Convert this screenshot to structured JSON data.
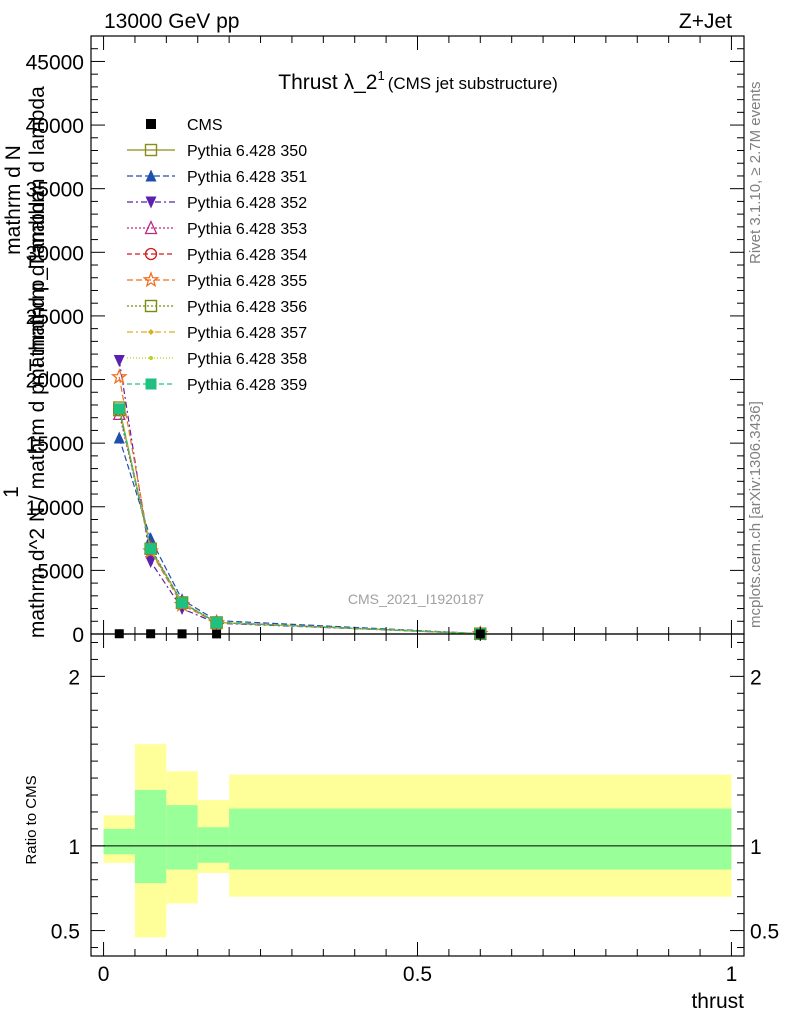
{
  "header": {
    "left": "13000 GeV pp",
    "right": "Z+Jet"
  },
  "chart_data": {
    "type": "line",
    "title": "Thrust λ_2",
    "title_superscript": "1",
    "title_suffix": "(CMS jet substructure)",
    "analysis_id": "CMS_2021_I1920187",
    "side_label_top": "Rivet 3.1.10, ≥ 2.7M events",
    "side_label_bottom": "mcplots.cern.ch [arXiv:1306.3436]",
    "xlabel": "thrust",
    "ylabel_top": "1",
    "ylabel_lines": [
      "mathrm d N",
      "mathrm d p_T mathrm d lambda",
      "mathrm d^2 N / mathrm d p_T mathrm d lambda"
    ],
    "ratio_ylabel": "Ratio to CMS",
    "xlim": [
      -0.02,
      1.02
    ],
    "ylim": [
      0,
      47000
    ],
    "ratio_ylim": [
      0.35,
      2.25
    ],
    "x_ticks": [
      0,
      0.5,
      1
    ],
    "x_tick_labels": [
      "0",
      "0.5",
      "1"
    ],
    "y_ticks": [
      0,
      5000,
      10000,
      15000,
      20000,
      25000,
      30000,
      35000,
      40000,
      45000
    ],
    "y_tick_labels": [
      "0",
      "5000",
      "10000",
      "15000",
      "20000",
      "25000",
      "30000",
      "35000",
      "40000",
      "45000"
    ],
    "ratio_ticks": [
      0.5,
      1,
      2
    ],
    "ratio_tick_labels": [
      "0.5",
      "1",
      "2"
    ],
    "legend_position": "top-left",
    "cms": {
      "name": "CMS",
      "x": [
        0.025,
        0.075,
        0.125,
        0.18,
        0.6
      ],
      "y": [
        20,
        18,
        12,
        8,
        2
      ]
    },
    "bins": [
      0,
      0.05,
      0.1,
      0.15,
      0.2,
      1.0
    ],
    "band_inner": [
      [
        0.95,
        1.1
      ],
      [
        0.78,
        1.33
      ],
      [
        0.86,
        1.24
      ],
      [
        0.9,
        1.11
      ],
      [
        0.86,
        1.22
      ]
    ],
    "band_outer": [
      [
        0.9,
        1.18
      ],
      [
        0.46,
        1.6
      ],
      [
        0.66,
        1.44
      ],
      [
        0.84,
        1.27
      ],
      [
        0.7,
        1.42
      ]
    ],
    "series": [
      {
        "name": "Pythia 6.428 350",
        "color": "#8c8c1e",
        "dash": "",
        "marker": "square-open",
        "x": [
          0.025,
          0.075,
          0.125,
          0.18,
          0.6
        ],
        "y": [
          17800,
          6700,
          2450,
          900,
          25
        ]
      },
      {
        "name": "Pythia 6.428 351",
        "color": "#1f4fae",
        "dash": "6,3",
        "marker": "triangle-up",
        "x": [
          0.025,
          0.075,
          0.125,
          0.18,
          0.6
        ],
        "y": [
          15400,
          7500,
          2700,
          1050,
          30
        ]
      },
      {
        "name": "Pythia 6.428 352",
        "color": "#5a20b0",
        "dash": "6,3,2,3",
        "marker": "triangle-down",
        "x": [
          0.025,
          0.075,
          0.125,
          0.18,
          0.6
        ],
        "y": [
          21500,
          5700,
          2000,
          850,
          20
        ]
      },
      {
        "name": "Pythia 6.428 353",
        "color": "#c0287f",
        "dash": "2,2",
        "marker": "triangle-up-open",
        "x": [
          0.025,
          0.075,
          0.125,
          0.18,
          0.6
        ],
        "y": [
          17300,
          6800,
          2500,
          920,
          25
        ]
      },
      {
        "name": "Pythia 6.428 354",
        "color": "#d11a1a",
        "dash": "5,3",
        "marker": "circle-open",
        "x": [
          0.025,
          0.075,
          0.125,
          0.18,
          0.6
        ],
        "y": [
          17600,
          6600,
          2450,
          910,
          25
        ]
      },
      {
        "name": "Pythia 6.428 355",
        "color": "#f07020",
        "dash": "6,3",
        "marker": "star-open",
        "x": [
          0.025,
          0.075,
          0.125,
          0.18,
          0.6
        ],
        "y": [
          20200,
          6500,
          2300,
          880,
          22
        ]
      },
      {
        "name": "Pythia 6.428 356",
        "color": "#7a8a10",
        "dash": "2,2",
        "marker": "square-open",
        "x": [
          0.025,
          0.075,
          0.125,
          0.18,
          0.6
        ],
        "y": [
          17600,
          6700,
          2480,
          900,
          25
        ]
      },
      {
        "name": "Pythia 6.428 357",
        "color": "#d8b020",
        "dash": "6,3,2,3",
        "marker": "diamond-small",
        "x": [
          0.025,
          0.075,
          0.125,
          0.18,
          0.6
        ],
        "y": [
          17700,
          6700,
          2460,
          905,
          25
        ]
      },
      {
        "name": "Pythia 6.428 358",
        "color": "#b8d020",
        "dash": "1,2",
        "marker": "dot",
        "x": [
          0.025,
          0.075,
          0.125,
          0.18,
          0.6
        ],
        "y": [
          17900,
          6650,
          2440,
          900,
          25
        ]
      },
      {
        "name": "Pythia 6.428 359",
        "color": "#20c080",
        "dash": "5,3",
        "marker": "square",
        "x": [
          0.025,
          0.075,
          0.125,
          0.18,
          0.6
        ],
        "y": [
          17700,
          6700,
          2450,
          905,
          25
        ]
      }
    ],
    "colors": {
      "band_inner": "#99ff99",
      "band_outer": "#ffff99",
      "cms": "#000000"
    }
  }
}
